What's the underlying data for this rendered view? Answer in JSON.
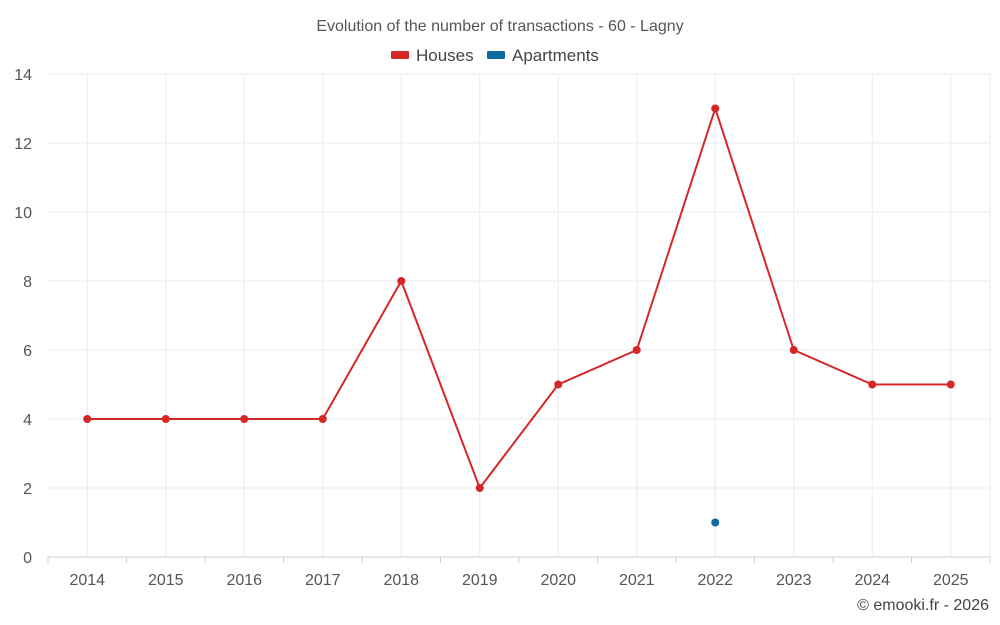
{
  "chart_data": {
    "type": "line",
    "title": "Evolution of the number of transactions - 60 - Lagny",
    "categories": [
      "2014",
      "2015",
      "2016",
      "2017",
      "2018",
      "2019",
      "2020",
      "2021",
      "2022",
      "2023",
      "2024",
      "2025"
    ],
    "series": [
      {
        "name": "Houses",
        "color": "#d62728",
        "values": [
          4,
          4,
          4,
          4,
          8,
          2,
          5,
          6,
          13,
          6,
          5,
          5
        ]
      },
      {
        "name": "Apartments",
        "color": "#0e6aa0",
        "values": [
          null,
          null,
          null,
          null,
          null,
          null,
          null,
          null,
          1,
          null,
          null,
          null
        ]
      }
    ],
    "ylim": [
      0,
      14
    ],
    "yticks": [
      0,
      2,
      4,
      6,
      8,
      10,
      12,
      14
    ],
    "xlabel": "",
    "ylabel": "",
    "grid": true,
    "legend": "top-center"
  },
  "credit": "© emooki.fr - 2026"
}
